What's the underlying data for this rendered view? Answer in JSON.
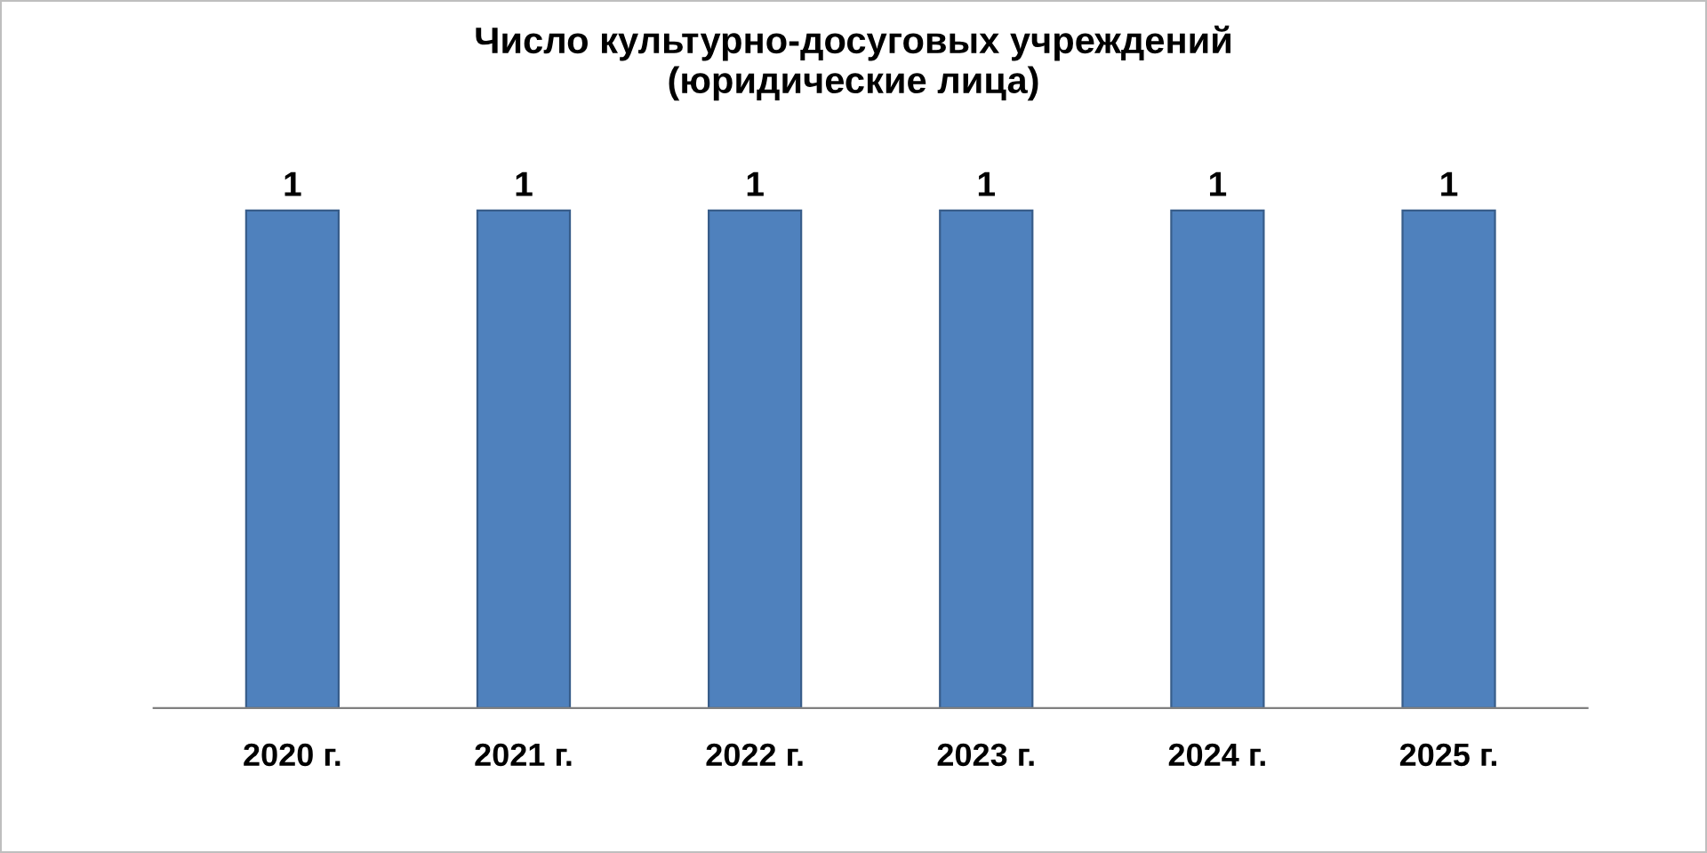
{
  "chart_data": {
    "type": "bar",
    "title": "Число культурно-досуговых учреждений\n(юридические лица)",
    "categories": [
      "2020 г.",
      "2021 г.",
      "2022 г.",
      "2023 г.",
      "2024 г.",
      "2025 г."
    ],
    "values": [
      1,
      1,
      1,
      1,
      1,
      1
    ],
    "color": "#4f81bd",
    "data_labels": true,
    "tick_labels": "x",
    "grid": false,
    "legend": false
  }
}
